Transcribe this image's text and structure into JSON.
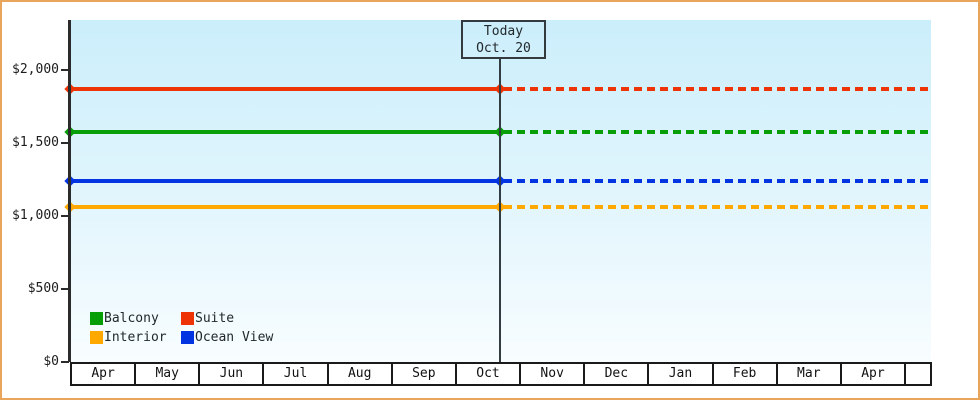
{
  "chart_data": {
    "type": "line",
    "title": "",
    "description": "Price history chart with flat price lines per cabin category; solid before today, dotted projection after today",
    "y_axis": {
      "tick_labels": [
        "$0",
        "$500",
        "$1,000",
        "$1,500",
        "$2,000"
      ],
      "tick_values": [
        0,
        500,
        1000,
        1500,
        2000
      ],
      "ylim": [
        0,
        2000
      ]
    },
    "x_axis": {
      "months": [
        "Apr",
        "May",
        "Jun",
        "Jul",
        "Aug",
        "Sep",
        "Oct",
        "Nov",
        "Dec",
        "Jan",
        "Feb",
        "Mar",
        "Apr"
      ]
    },
    "series": [
      {
        "name": "Balcony",
        "color": "#089e08",
        "value": 1575,
        "style": "solid-then-dashed"
      },
      {
        "name": "Suite",
        "color": "#ee3407",
        "value": 1870,
        "style": "solid-then-dashed"
      },
      {
        "name": "Interior",
        "color": "#ffa800",
        "value": 1060,
        "style": "solid-then-dashed"
      },
      {
        "name": "Ocean View",
        "color": "#0334e2",
        "value": 1240,
        "style": "solid-then-dashed"
      }
    ],
    "today_marker": {
      "line1": "Today",
      "line2": "Oct. 20",
      "month": "Oct"
    },
    "legend": {
      "position": "bottom-left",
      "items": [
        "Balcony",
        "Suite",
        "Interior",
        "Ocean View"
      ]
    },
    "grid": false
  },
  "colors": {
    "frame_border": "#e9a55c",
    "axis": "#2b2b2b",
    "text": "#1c1c1c",
    "plot_bg_top": "#cbeefb",
    "plot_bg_bottom": "#f8fdff",
    "month_box_bg": "#ffffff",
    "today_line": "#333c40"
  }
}
